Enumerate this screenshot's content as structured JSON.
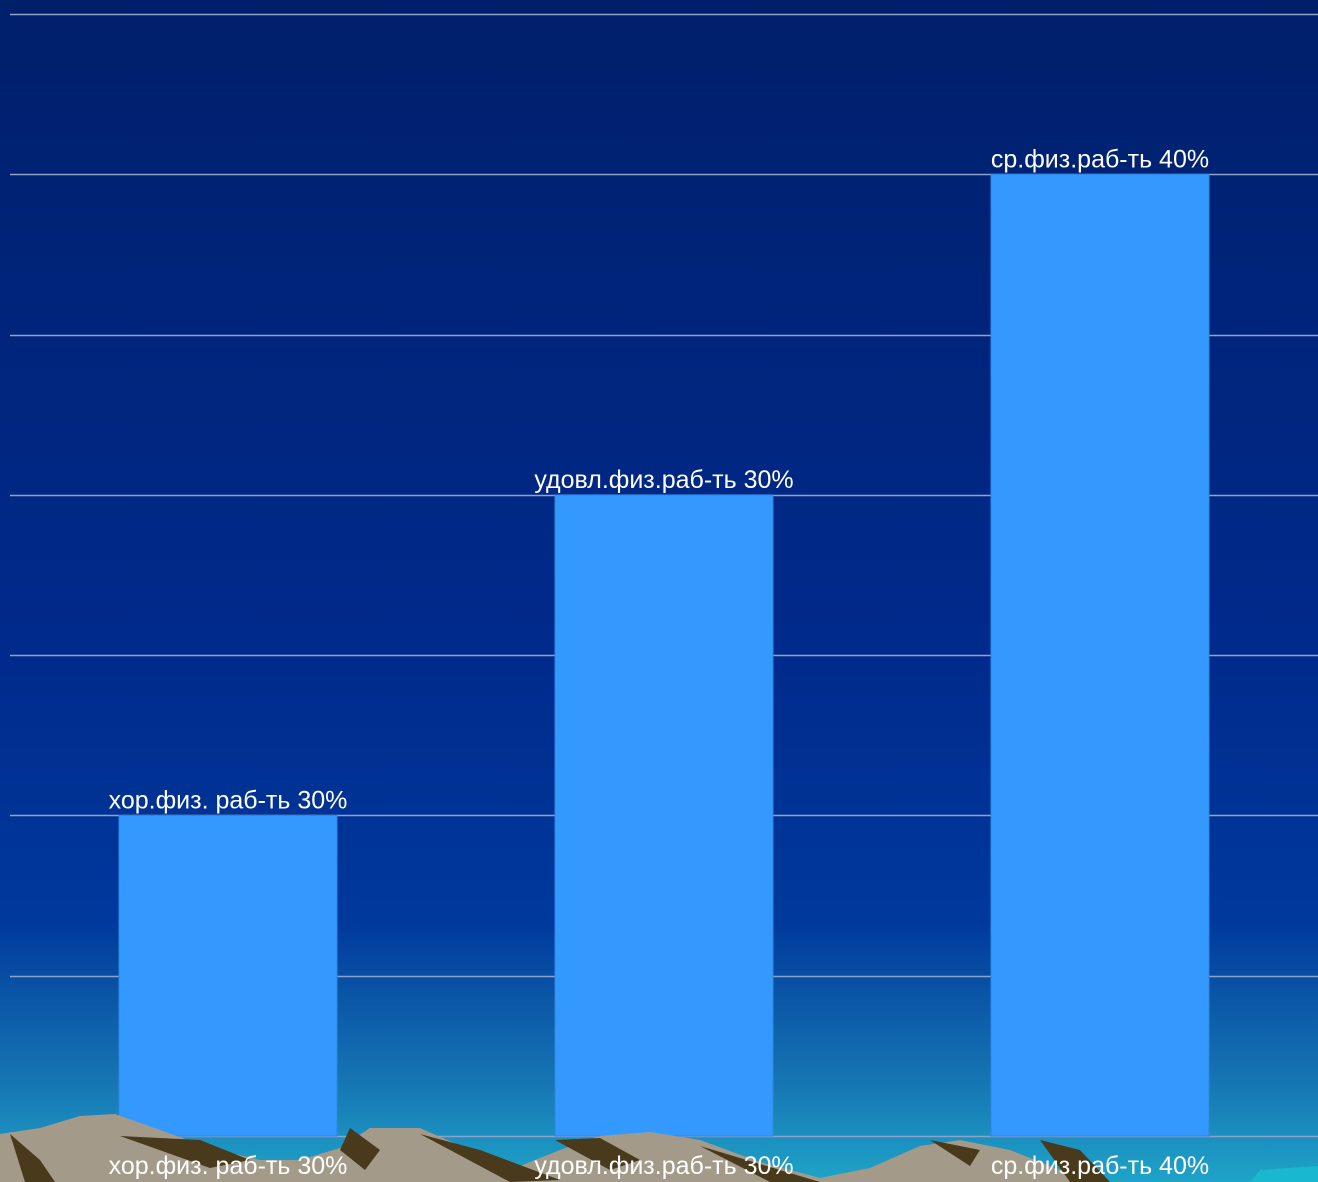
{
  "chart_data": {
    "type": "bar",
    "categories": [
      "хор.физ. раб-ть 30%",
      "удовл.физ.раб-ть 30%",
      "ср.физ.раб-ть 40%"
    ],
    "series": [
      {
        "values": [
          20,
          40,
          60
        ],
        "data_labels": [
          "хор.физ. раб-ть 30%",
          "удовл.физ.раб-ть 30%",
          "ср.физ.раб-ть 40%"
        ]
      }
    ],
    "ylim": [
      0,
      70
    ],
    "y_grid_step": 10,
    "grid": true,
    "legend": "none",
    "title": "",
    "xlabel": "",
    "ylabel": ""
  },
  "colors": {
    "bar": "#3399ff",
    "bar_edge": "#2f86e0",
    "gridline": "#8fa3c8",
    "label_text": "#ffffff",
    "bg_top": "#001f6b",
    "bg_mid": "#00339a",
    "bg_bottom": "#1fa0c8",
    "rock_light": "#a39a8a",
    "rock_dark": "#4a3a1c"
  }
}
